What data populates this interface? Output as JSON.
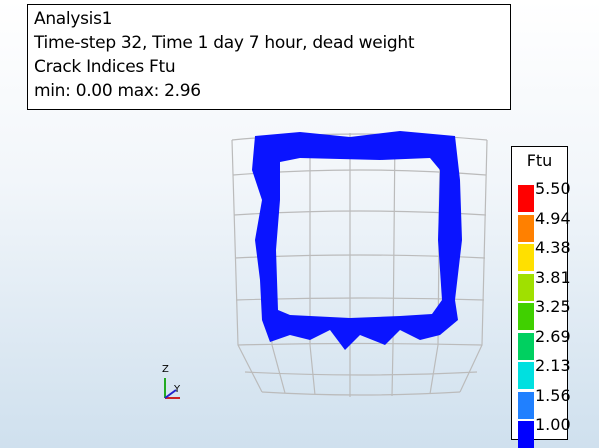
{
  "info": {
    "lines": [
      "Analysis1",
      "Time-step 32, Time 1 day 7 hour, dead weight",
      "Crack Indices Ftu",
      "min:  0.00 max:  2.96"
    ]
  },
  "legend": {
    "title": "Ftu",
    "labels": [
      "5.50",
      "4.94",
      "4.38",
      "3.81",
      "3.25",
      "2.69",
      "2.13",
      "1.56",
      "1.00"
    ],
    "colors": [
      "#ff0000",
      "#ff8000",
      "#ffe000",
      "#a0e000",
      "#40d000",
      "#00d060",
      "#00e0e0",
      "#2080ff",
      "#0000ff"
    ]
  },
  "axes": {
    "z": "Z",
    "y": "Y"
  }
}
